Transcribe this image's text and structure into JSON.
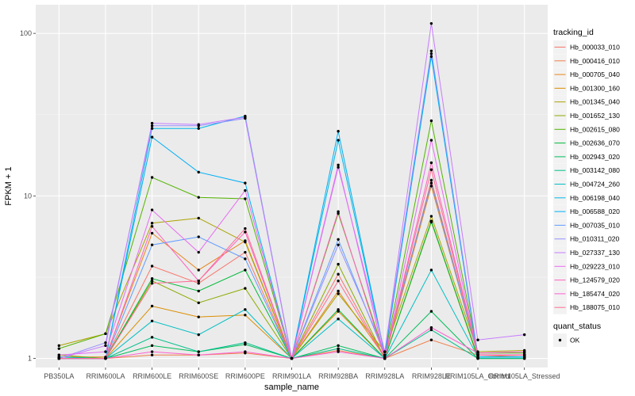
{
  "chart_data": {
    "type": "line",
    "xlabel": "sample_name",
    "ylabel": "FPKM + 1",
    "y_scale": "log10",
    "ylim": [
      0.88,
      150
    ],
    "y_ticks": [
      1,
      10,
      100
    ],
    "y_tick_labels": [
      "1",
      "10",
      "100"
    ],
    "grid": true,
    "panel_background": "#ebebeb",
    "categories": [
      "PB350LA",
      "RRIM600LA",
      "RRIM600LE",
      "RRIM600SE",
      "RRIM600PE",
      "RRIM901LA",
      "RRIM928BA",
      "RRIM928LA",
      "RRIM928LE",
      "RRIM105LA_Control",
      "RRIM105LA_Stressed"
    ],
    "series": [
      {
        "name": "Hb_000033_010",
        "color": "#F8766D",
        "values": [
          1.0,
          1.0,
          3.7,
          2.9,
          4.5,
          1.0,
          3.3,
          1.0,
          12.5,
          1.05,
          1.05
        ]
      },
      {
        "name": "Hb_000416_010",
        "color": "#F07E4B",
        "values": [
          1.0,
          1.0,
          1.05,
          1.05,
          1.08,
          1.0,
          1.12,
          1.0,
          1.3,
          1.05,
          1.02
        ]
      },
      {
        "name": "Hb_000705_040",
        "color": "#E7861B",
        "values": [
          1.02,
          1.02,
          5.9,
          3.5,
          5.3,
          1.0,
          2.6,
          1.02,
          11.5,
          1.05,
          1.05
        ]
      },
      {
        "name": "Hb_001300_160",
        "color": "#DB8E00",
        "values": [
          1.0,
          1.0,
          2.1,
          1.8,
          1.85,
          1.0,
          1.95,
          1.0,
          7.0,
          1.0,
          1.0
        ]
      },
      {
        "name": "Hb_001345_040",
        "color": "#ABA300",
        "values": [
          1.2,
          1.42,
          6.8,
          7.3,
          5.2,
          1.0,
          2.5,
          1.1,
          7.5,
          1.1,
          1.12
        ]
      },
      {
        "name": "Hb_001652_130",
        "color": "#8BAB00",
        "values": [
          1.05,
          1.0,
          3.0,
          2.2,
          2.7,
          1.0,
          3.8,
          1.0,
          6.9,
          1.02,
          1.02
        ]
      },
      {
        "name": "Hb_002615_080",
        "color": "#53B400",
        "values": [
          1.15,
          1.42,
          13.0,
          9.8,
          9.6,
          1.0,
          7.8,
          1.05,
          29.0,
          1.08,
          1.08
        ]
      },
      {
        "name": "Hb_002636_070",
        "color": "#00BA38",
        "values": [
          1.02,
          1.0,
          3.1,
          2.6,
          3.5,
          1.0,
          2.0,
          1.0,
          7.0,
          1.02,
          1.02
        ]
      },
      {
        "name": "Hb_002943_020",
        "color": "#00BD5C",
        "values": [
          1.0,
          1.0,
          1.2,
          1.1,
          1.22,
          1.0,
          1.2,
          1.0,
          1.95,
          1.0,
          1.0
        ]
      },
      {
        "name": "Hb_003142_080",
        "color": "#00C08B",
        "values": [
          1.0,
          1.0,
          1.35,
          1.1,
          1.25,
          1.0,
          1.15,
          1.0,
          1.5,
          1.0,
          1.0
        ]
      },
      {
        "name": "Hb_004724_260",
        "color": "#00BFC4",
        "values": [
          1.02,
          1.0,
          1.7,
          1.4,
          2.0,
          1.0,
          1.75,
          1.0,
          3.5,
          1.02,
          1.02
        ]
      },
      {
        "name": "Hb_006198_040",
        "color": "#00B8E7",
        "values": [
          1.0,
          1.0,
          26.0,
          26.0,
          31.0,
          1.0,
          22.0,
          1.05,
          72.0,
          1.02,
          1.02
        ]
      },
      {
        "name": "Hb_006588_020",
        "color": "#00B0F6",
        "values": [
          1.0,
          1.0,
          23.0,
          14.0,
          12.0,
          1.0,
          25.0,
          1.05,
          75.0,
          1.02,
          1.02
        ]
      },
      {
        "name": "Hb_007035_010",
        "color": "#619CFF",
        "values": [
          1.0,
          1.0,
          5.0,
          5.6,
          4.1,
          1.0,
          5.4,
          1.05,
          12.0,
          1.05,
          1.05
        ]
      },
      {
        "name": "Hb_010311_020",
        "color": "#9590FF",
        "values": [
          1.0,
          1.25,
          27.0,
          27.0,
          30.0,
          1.0,
          5.0,
          1.1,
          78.0,
          1.05,
          1.05
        ]
      },
      {
        "name": "Hb_027337_130",
        "color": "#C77CFF",
        "values": [
          1.0,
          1.2,
          28.0,
          27.5,
          30.5,
          1.0,
          15.0,
          1.1,
          115.0,
          1.3,
          1.4
        ]
      },
      {
        "name": "Hb_029223_010",
        "color": "#E76BF3",
        "values": [
          1.05,
          1.1,
          8.2,
          4.5,
          10.8,
          1.0,
          15.5,
          1.0,
          22.0,
          1.05,
          1.05
        ]
      },
      {
        "name": "Hb_124579_020",
        "color": "#FF62BC",
        "values": [
          1.0,
          1.0,
          6.5,
          3.0,
          6.0,
          1.0,
          8.0,
          1.0,
          16.0,
          1.05,
          1.05
        ]
      },
      {
        "name": "Hb_185474_020",
        "color": "#FD61D1",
        "values": [
          1.0,
          1.0,
          1.1,
          1.05,
          1.1,
          1.0,
          1.1,
          1.0,
          1.55,
          1.08,
          1.1
        ]
      },
      {
        "name": "Hb_188075_010",
        "color": "#FF6C91",
        "values": [
          1.0,
          1.0,
          2.9,
          3.0,
          6.3,
          1.0,
          3.0,
          1.0,
          14.5,
          1.05,
          1.05
        ]
      }
    ],
    "legend": {
      "title": "tracking_id",
      "position": "right"
    },
    "legend2": {
      "title": "quant_status",
      "items": [
        "OK"
      ]
    }
  }
}
